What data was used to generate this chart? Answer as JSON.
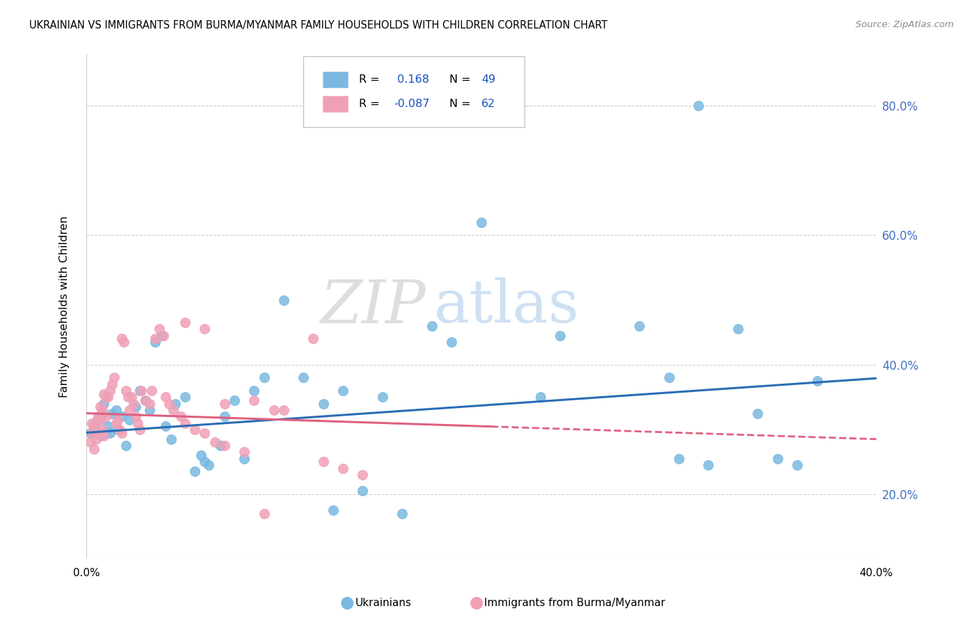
{
  "title": "UKRAINIAN VS IMMIGRANTS FROM BURMA/MYANMAR FAMILY HOUSEHOLDS WITH CHILDREN CORRELATION CHART",
  "source": "Source: ZipAtlas.com",
  "ylabel": "Family Households with Children",
  "xlim": [
    0.0,
    0.4
  ],
  "ylim": [
    0.1,
    0.88
  ],
  "ytick_positions": [
    0.2,
    0.4,
    0.6,
    0.8
  ],
  "ytick_labels": [
    "20.0%",
    "40.0%",
    "60.0%",
    "80.0%"
  ],
  "xtick_positions": [
    0.0,
    0.05,
    0.1,
    0.15,
    0.2,
    0.25,
    0.3,
    0.35,
    0.4
  ],
  "xtick_labels": [
    "0.0%",
    "",
    "",
    "",
    "",
    "",
    "",
    "",
    "40.0%"
  ],
  "blue_color": "#7ab9e0",
  "pink_color": "#f0a0b5",
  "blue_line_color": "#2a6db5",
  "pink_line_color": "#e06080",
  "r_value_color": "#1a50c0",
  "blue_scatter": [
    [
      0.002,
      0.295
    ],
    [
      0.004,
      0.305
    ],
    [
      0.005,
      0.3
    ],
    [
      0.006,
      0.315
    ],
    [
      0.007,
      0.29
    ],
    [
      0.008,
      0.325
    ],
    [
      0.009,
      0.34
    ],
    [
      0.01,
      0.295
    ],
    [
      0.011,
      0.305
    ],
    [
      0.012,
      0.295
    ],
    [
      0.013,
      0.325
    ],
    [
      0.015,
      0.33
    ],
    [
      0.016,
      0.3
    ],
    [
      0.018,
      0.32
    ],
    [
      0.02,
      0.275
    ],
    [
      0.022,
      0.315
    ],
    [
      0.025,
      0.335
    ],
    [
      0.027,
      0.36
    ],
    [
      0.03,
      0.345
    ],
    [
      0.032,
      0.33
    ],
    [
      0.035,
      0.435
    ],
    [
      0.038,
      0.445
    ],
    [
      0.04,
      0.305
    ],
    [
      0.043,
      0.285
    ],
    [
      0.045,
      0.34
    ],
    [
      0.05,
      0.35
    ],
    [
      0.055,
      0.235
    ],
    [
      0.058,
      0.26
    ],
    [
      0.06,
      0.25
    ],
    [
      0.062,
      0.245
    ],
    [
      0.068,
      0.275
    ],
    [
      0.07,
      0.32
    ],
    [
      0.075,
      0.345
    ],
    [
      0.08,
      0.255
    ],
    [
      0.085,
      0.36
    ],
    [
      0.09,
      0.38
    ],
    [
      0.1,
      0.5
    ],
    [
      0.11,
      0.38
    ],
    [
      0.12,
      0.34
    ],
    [
      0.125,
      0.175
    ],
    [
      0.13,
      0.36
    ],
    [
      0.14,
      0.205
    ],
    [
      0.15,
      0.35
    ],
    [
      0.16,
      0.17
    ],
    [
      0.175,
      0.46
    ],
    [
      0.185,
      0.435
    ],
    [
      0.2,
      0.62
    ],
    [
      0.23,
      0.35
    ],
    [
      0.24,
      0.445
    ],
    [
      0.28,
      0.46
    ],
    [
      0.295,
      0.38
    ],
    [
      0.3,
      0.255
    ],
    [
      0.31,
      0.8
    ],
    [
      0.315,
      0.245
    ],
    [
      0.33,
      0.455
    ],
    [
      0.34,
      0.325
    ],
    [
      0.35,
      0.255
    ],
    [
      0.36,
      0.245
    ],
    [
      0.37,
      0.375
    ]
  ],
  "pink_scatter": [
    [
      0.002,
      0.28
    ],
    [
      0.003,
      0.295
    ],
    [
      0.003,
      0.31
    ],
    [
      0.004,
      0.305
    ],
    [
      0.004,
      0.27
    ],
    [
      0.005,
      0.285
    ],
    [
      0.006,
      0.295
    ],
    [
      0.006,
      0.32
    ],
    [
      0.007,
      0.315
    ],
    [
      0.007,
      0.335
    ],
    [
      0.008,
      0.3
    ],
    [
      0.008,
      0.33
    ],
    [
      0.009,
      0.29
    ],
    [
      0.009,
      0.355
    ],
    [
      0.01,
      0.35
    ],
    [
      0.01,
      0.32
    ],
    [
      0.011,
      0.35
    ],
    [
      0.012,
      0.36
    ],
    [
      0.013,
      0.37
    ],
    [
      0.014,
      0.38
    ],
    [
      0.015,
      0.31
    ],
    [
      0.016,
      0.315
    ],
    [
      0.017,
      0.3
    ],
    [
      0.018,
      0.295
    ],
    [
      0.018,
      0.44
    ],
    [
      0.019,
      0.435
    ],
    [
      0.02,
      0.36
    ],
    [
      0.021,
      0.35
    ],
    [
      0.022,
      0.33
    ],
    [
      0.023,
      0.35
    ],
    [
      0.024,
      0.34
    ],
    [
      0.025,
      0.32
    ],
    [
      0.026,
      0.31
    ],
    [
      0.027,
      0.3
    ],
    [
      0.028,
      0.36
    ],
    [
      0.03,
      0.345
    ],
    [
      0.032,
      0.34
    ],
    [
      0.033,
      0.36
    ],
    [
      0.035,
      0.44
    ],
    [
      0.037,
      0.455
    ],
    [
      0.039,
      0.445
    ],
    [
      0.04,
      0.35
    ],
    [
      0.042,
      0.34
    ],
    [
      0.044,
      0.33
    ],
    [
      0.048,
      0.32
    ],
    [
      0.05,
      0.31
    ],
    [
      0.055,
      0.3
    ],
    [
      0.06,
      0.295
    ],
    [
      0.065,
      0.28
    ],
    [
      0.07,
      0.275
    ],
    [
      0.08,
      0.265
    ],
    [
      0.09,
      0.17
    ],
    [
      0.1,
      0.33
    ],
    [
      0.115,
      0.44
    ],
    [
      0.12,
      0.25
    ],
    [
      0.13,
      0.24
    ],
    [
      0.14,
      0.23
    ],
    [
      0.05,
      0.465
    ],
    [
      0.06,
      0.455
    ],
    [
      0.07,
      0.34
    ],
    [
      0.085,
      0.345
    ],
    [
      0.095,
      0.33
    ]
  ]
}
